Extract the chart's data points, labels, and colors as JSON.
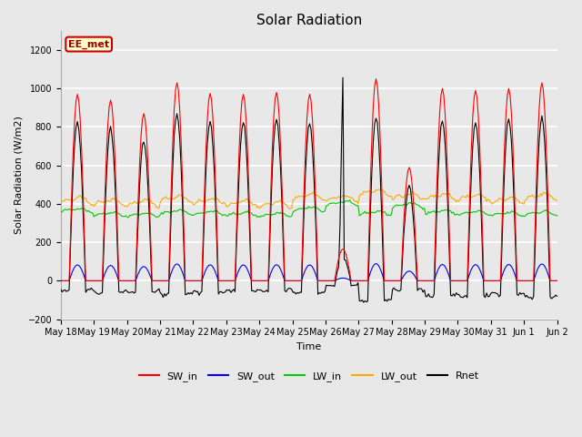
{
  "title": "Solar Radiation",
  "ylabel": "Solar Radiation (W/m2)",
  "xlabel": "Time",
  "ylim": [
    -200,
    1300
  ],
  "yticks": [
    -200,
    0,
    200,
    400,
    600,
    800,
    1000,
    1200
  ],
  "annotation_label": "EE_met",
  "annotation_bg": "#ffffcc",
  "annotation_border": "#cc0000",
  "annotation_text_color": "#990000",
  "colors": {
    "SW_in": "#ff0000",
    "SW_out": "#0000ff",
    "LW_in": "#00cc00",
    "LW_out": "#ffaa00",
    "Rnet": "#000000"
  },
  "fig_bg": "#e8e8e8",
  "plot_bg": "#e8e8e8",
  "grid_color": "#ffffff",
  "lw": 0.8
}
